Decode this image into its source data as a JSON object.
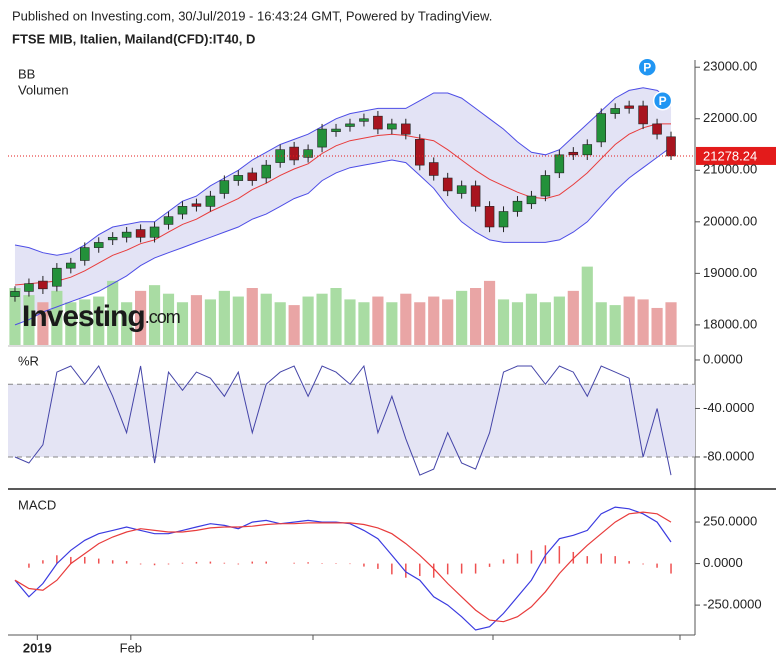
{
  "header": {
    "published": "Published on Investing.com, 30/Jul/2019 - 16:43:24 GMT, Powered by TradingView.",
    "symbol": "FTSE MIB, Italien, Mailand(CFD):IT40, D"
  },
  "watermark": {
    "brand": "Investing",
    "suffix": ".com"
  },
  "chart_data": [
    {
      "type": "candlestick",
      "labels": [
        "BB",
        "Volumen"
      ],
      "open": [
        18550,
        18650,
        18850,
        18750,
        19100,
        19250,
        19500,
        19650,
        19700,
        19850,
        19700,
        19950,
        20150,
        20350,
        20300,
        20550,
        20800,
        20950,
        20850,
        21150,
        21450,
        21250,
        21450,
        21750,
        21850,
        21950,
        22050,
        21800,
        21900,
        21600,
        21150,
        20850,
        20550,
        20700,
        20300,
        19900,
        20200,
        20350,
        20500,
        20950,
        21350,
        21300,
        21550,
        22100,
        22250,
        22250,
        21900,
        21650
      ],
      "high": [
        18750,
        18900,
        18950,
        19200,
        19300,
        19600,
        19700,
        19800,
        19900,
        19950,
        20000,
        20200,
        20400,
        20450,
        20600,
        20900,
        21000,
        21050,
        21200,
        21500,
        21550,
        21500,
        21900,
        21900,
        22000,
        22100,
        22150,
        22000,
        22000,
        21700,
        21250,
        20950,
        20800,
        20800,
        20400,
        20300,
        20500,
        20600,
        21000,
        21400,
        21450,
        21600,
        22200,
        22300,
        22350,
        22350,
        22000,
        21750
      ],
      "low": [
        18450,
        18550,
        18600,
        18650,
        19000,
        19150,
        19400,
        19550,
        19600,
        19600,
        19600,
        19850,
        20050,
        20200,
        20200,
        20450,
        20700,
        20700,
        20750,
        21050,
        21100,
        21150,
        21350,
        21650,
        21750,
        21850,
        21700,
        21700,
        21600,
        21000,
        20800,
        20500,
        20450,
        20200,
        19800,
        19800,
        20100,
        20250,
        20400,
        20850,
        21200,
        21200,
        21450,
        22000,
        22100,
        21800,
        21600,
        21200
      ],
      "close": [
        18650,
        18800,
        18700,
        19100,
        19200,
        19500,
        19600,
        19700,
        19800,
        19700,
        19900,
        20100,
        20300,
        20300,
        20500,
        20800,
        20900,
        20800,
        21100,
        21400,
        21200,
        21400,
        21800,
        21800,
        21900,
        22000,
        21800,
        21900,
        21700,
        21100,
        20900,
        20600,
        20700,
        20300,
        19900,
        20200,
        20400,
        20500,
        20900,
        21300,
        21300,
        21500,
        22100,
        22200,
        22200,
        21900,
        21700,
        21278.24
      ],
      "bb_upper": [
        19550,
        19500,
        19400,
        19350,
        19400,
        19550,
        19750,
        19900,
        19950,
        20000,
        20000,
        20200,
        20400,
        20500,
        20700,
        20850,
        21000,
        21200,
        21350,
        21500,
        21600,
        21700,
        21850,
        22000,
        22100,
        22150,
        22200,
        22200,
        22200,
        22350,
        22500,
        22500,
        22400,
        22200,
        22000,
        21800,
        21550,
        21350,
        21300,
        21400,
        21650,
        21900,
        22150,
        22400,
        22550,
        22600,
        22550,
        22350
      ],
      "bb_middle": [
        18775,
        18800,
        18825,
        18850,
        18925,
        19050,
        19200,
        19350,
        19450,
        19575,
        19650,
        19800,
        19950,
        20050,
        20200,
        20325,
        20450,
        20625,
        20750,
        20900,
        21025,
        21125,
        21325,
        21475,
        21575,
        21625,
        21675,
        21700,
        21675,
        21625,
        21575,
        21400,
        21200,
        21000,
        20825,
        20700,
        20575,
        20475,
        20450,
        20525,
        20725,
        20950,
        21225,
        21500,
        21700,
        21825,
        21900,
        21900
      ],
      "bb_lower": [
        18000,
        18100,
        18250,
        18350,
        18450,
        18550,
        18650,
        18800,
        18950,
        19150,
        19300,
        19400,
        19500,
        19600,
        19700,
        19800,
        19900,
        20050,
        20150,
        20300,
        20450,
        20550,
        20800,
        20950,
        21050,
        21100,
        21150,
        21200,
        21150,
        20900,
        20650,
        20300,
        20000,
        19800,
        19650,
        19600,
        19600,
        19600,
        19600,
        19650,
        19800,
        20000,
        20300,
        20600,
        20850,
        21050,
        21250,
        21450
      ],
      "volume": [
        40,
        35,
        30,
        38,
        30,
        32,
        34,
        45,
        30,
        38,
        42,
        36,
        30,
        35,
        32,
        38,
        34,
        40,
        36,
        30,
        28,
        34,
        36,
        40,
        32,
        30,
        34,
        30,
        36,
        30,
        34,
        32,
        38,
        40,
        45,
        32,
        30,
        36,
        30,
        34,
        38,
        55,
        30,
        28,
        34,
        32,
        26,
        30
      ],
      "volume_ylim": [
        0,
        200
      ],
      "ylim": [
        17610,
        23140
      ],
      "yticks": [
        {
          "value": 18000,
          "label": "18000.00"
        },
        {
          "value": 19000,
          "label": "19000.00"
        },
        {
          "value": 20000,
          "label": "20000.00"
        },
        {
          "value": 21000,
          "label": "21000.00"
        },
        {
          "value": 22000,
          "label": "22000.00"
        },
        {
          "value": 23000,
          "label": "23000.00"
        }
      ],
      "last_price": 21278.24,
      "markers": [
        {
          "label": "P",
          "index": 45.3,
          "price": 23000
        },
        {
          "label": "P",
          "index": 46.4,
          "price": 22350
        }
      ],
      "colors": {
        "up": "#23913a",
        "down": "#a8141f",
        "vol_up": "#a9dca3",
        "vol_down": "#e9a5a5",
        "band": "#4d4de6",
        "band_fill": "#dcdcf2",
        "middle": "#e83c3c",
        "last": "#e31b1b"
      }
    },
    {
      "type": "line",
      "label": "%R",
      "values": [
        -80,
        -85,
        -70,
        -10,
        -5,
        -20,
        -5,
        -30,
        -60,
        -5,
        -85,
        -10,
        -25,
        -10,
        -15,
        -30,
        -10,
        -60,
        -20,
        -10,
        -5,
        -30,
        -5,
        -10,
        -20,
        -5,
        -60,
        -30,
        -65,
        -95,
        -90,
        -60,
        -85,
        -90,
        -60,
        -10,
        -5,
        -5,
        -20,
        -5,
        -10,
        -30,
        -5,
        -10,
        -15,
        -80,
        -40,
        -95
      ],
      "ylim": [
        -105.6,
        10.7
      ],
      "yticks": [
        {
          "value": 0,
          "label": "0.0000"
        },
        {
          "value": -40,
          "label": "-40.0000"
        },
        {
          "value": -80,
          "label": "-80.0000"
        }
      ],
      "levels": [
        -20,
        -80
      ],
      "color": "#4545a8",
      "band_fill": "#e4e4f4"
    },
    {
      "type": "macd",
      "label": "MACD",
      "series": [
        {
          "name": "MACD",
          "color": "#3b3be0",
          "values": [
            -100,
            -200,
            -120,
            0,
            80,
            140,
            180,
            200,
            220,
            200,
            180,
            180,
            200,
            220,
            240,
            230,
            210,
            250,
            260,
            240,
            250,
            260,
            250,
            250,
            240,
            200,
            150,
            50,
            -50,
            -100,
            -200,
            -250,
            -320,
            -400,
            -380,
            -300,
            -200,
            -100,
            50,
            150,
            170,
            200,
            300,
            340,
            330,
            300,
            250,
            130
          ]
        },
        {
          "name": "Signal",
          "color": "#e83c3c",
          "values": [
            -100,
            -150,
            -160,
            -100,
            0,
            60,
            120,
            160,
            190,
            210,
            200,
            190,
            190,
            200,
            215,
            220,
            220,
            225,
            235,
            240,
            240,
            245,
            245,
            245,
            245,
            235,
            215,
            180,
            120,
            50,
            -30,
            -120,
            -200,
            -280,
            -340,
            -350,
            -320,
            -260,
            -170,
            -60,
            30,
            110,
            180,
            250,
            300,
            310,
            300,
            250
          ]
        }
      ],
      "histogram": [
        0,
        -25,
        20,
        50,
        40,
        40,
        30,
        20,
        15,
        -5,
        -10,
        -5,
        5,
        10,
        12,
        5,
        -5,
        12,
        12,
        0,
        5,
        8,
        3,
        3,
        -3,
        -18,
        -32,
        -65,
        -85,
        -75,
        -85,
        -65,
        -60,
        -60,
        -20,
        25,
        60,
        80,
        110,
        105,
        70,
        45,
        60,
        45,
        15,
        -5,
        -25,
        -60
      ],
      "histogram_color": "#ef5050",
      "ylim": [
        -430,
        443
      ],
      "yticks": [
        {
          "value": 250,
          "label": "250.0000"
        },
        {
          "value": 0,
          "label": "0.0000"
        },
        {
          "value": -250,
          "label": "-250.0000"
        }
      ],
      "xticks": [
        {
          "value": 1.6,
          "label": "2019"
        },
        {
          "value": 8.3,
          "label": "Feb"
        }
      ]
    }
  ]
}
